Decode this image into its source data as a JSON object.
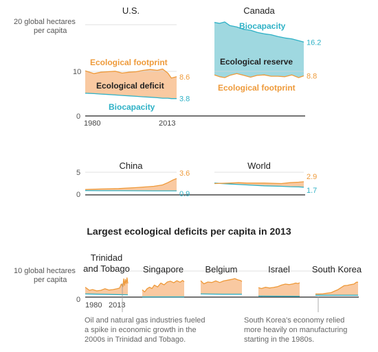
{
  "colors": {
    "footprint": "#ee9a3a",
    "biocapacity": "#2eb1c6",
    "deficit_fill": "#f9c9a1",
    "reserve_fill": "#9fd8e0",
    "text": "#222222",
    "axis_text": "#555555",
    "annotation_text": "#666666",
    "baseline": "#222222",
    "gridline": "#d6d6d6"
  },
  "top_panels": {
    "ytick_top": "20 global hectares",
    "ytick_top_line2": "per capita",
    "ytick_mid": "10",
    "ytick_zero": "0",
    "x_start": "1980",
    "x_end": "2013"
  },
  "middle_panels": {
    "ytick_five": "5",
    "ytick_zero": "0"
  },
  "section_title": "Largest ecological deficits per capita in 2013",
  "bottom_panels": {
    "ytick_top": "10 global hectares",
    "ytick_top_line2": "per capita",
    "ytick_zero": "0",
    "x_start": "1980",
    "x_end": "2013"
  },
  "annotations": {
    "trinidad_line1": "Oil and natural gas industries fueled",
    "trinidad_line2": "a spike in economic growth in the",
    "trinidad_line3": "2000s in Trinidad and Tobago.",
    "korea_line1": "South Korea's economy relied",
    "korea_line2": "more heavily on manufacturing",
    "korea_line3": "starting in the 1980s."
  },
  "chart_data": [
    {
      "type": "area",
      "title": "U.S.",
      "x_range": [
        1961,
        2013
      ],
      "ylim": [
        0,
        20
      ],
      "region_labels": [
        "Ecological footprint",
        "Ecological deficit",
        "Biocapacity"
      ],
      "series": [
        {
          "name": "Ecological footprint",
          "x": [
            1961,
            1966,
            1970,
            1974,
            1978,
            1982,
            1986,
            1990,
            1994,
            1998,
            2002,
            2005,
            2008,
            2010,
            2013
          ],
          "values": [
            9.9,
            9.3,
            9.6,
            9.7,
            9.8,
            9.4,
            9.6,
            9.7,
            10.0,
            10.2,
            10.0,
            10.3,
            9.4,
            8.3,
            8.6
          ]
        },
        {
          "name": "Biocapacity",
          "x": [
            1961,
            1966,
            1970,
            1974,
            1978,
            1982,
            1986,
            1990,
            1994,
            1998,
            2002,
            2005,
            2008,
            2010,
            2013
          ],
          "values": [
            5.0,
            4.9,
            4.8,
            4.7,
            4.6,
            4.5,
            4.4,
            4.3,
            4.2,
            4.1,
            4.0,
            3.9,
            3.9,
            3.8,
            3.8
          ]
        }
      ],
      "end_labels": [
        "8.6",
        "3.8"
      ]
    },
    {
      "type": "area",
      "title": "Canada",
      "x_range": [
        1961,
        2013
      ],
      "ylim": [
        0,
        20
      ],
      "region_labels": [
        "Biocapacity",
        "Ecological reserve",
        "Ecological footprint"
      ],
      "series": [
        {
          "name": "Biocapacity",
          "x": [
            1961,
            1964,
            1967,
            1970,
            1974,
            1978,
            1982,
            1986,
            1990,
            1994,
            1998,
            2002,
            2006,
            2010,
            2013
          ],
          "values": [
            20.5,
            20.3,
            20.6,
            19.8,
            19.5,
            19.0,
            18.8,
            18.3,
            18.0,
            17.8,
            17.4,
            17.1,
            16.9,
            16.5,
            16.2
          ]
        },
        {
          "name": "Ecological footprint",
          "x": [
            1961,
            1964,
            1967,
            1970,
            1974,
            1978,
            1982,
            1986,
            1990,
            1994,
            1998,
            2002,
            2006,
            2010,
            2013
          ],
          "values": [
            9.0,
            8.6,
            8.4,
            8.9,
            9.3,
            8.9,
            8.5,
            8.9,
            9.0,
            8.7,
            8.7,
            8.6,
            9.0,
            8.4,
            8.8
          ]
        }
      ],
      "end_labels": [
        "16.2",
        "8.8"
      ]
    },
    {
      "type": "area",
      "title": "China",
      "x_range": [
        1961,
        2013
      ],
      "ylim": [
        0,
        5
      ],
      "series": [
        {
          "name": "Ecological footprint",
          "x": [
            1961,
            1970,
            1980,
            1990,
            2000,
            2005,
            2008,
            2011,
            2013
          ],
          "values": [
            1.2,
            1.3,
            1.4,
            1.6,
            1.9,
            2.2,
            2.7,
            3.3,
            3.6
          ]
        },
        {
          "name": "Biocapacity",
          "x": [
            1961,
            1970,
            1980,
            1990,
            2000,
            2005,
            2008,
            2011,
            2013
          ],
          "values": [
            0.95,
            0.93,
            0.92,
            0.91,
            0.9,
            0.9,
            0.9,
            0.9,
            0.9
          ]
        }
      ],
      "end_labels": [
        "3.6",
        "0.9"
      ]
    },
    {
      "type": "area",
      "title": "World",
      "x_range": [
        1961,
        2013
      ],
      "ylim": [
        0,
        5
      ],
      "series": [
        {
          "name": "Ecological footprint",
          "x": [
            1961,
            1970,
            1975,
            1980,
            1990,
            2000,
            2005,
            2010,
            2013
          ],
          "values": [
            2.5,
            2.6,
            2.7,
            2.6,
            2.6,
            2.5,
            2.7,
            2.8,
            2.9
          ]
        },
        {
          "name": "Biocapacity",
          "x": [
            1961,
            1970,
            1980,
            1990,
            2000,
            2005,
            2010,
            2013
          ],
          "values": [
            2.6,
            2.4,
            2.2,
            2.0,
            1.9,
            1.8,
            1.75,
            1.7
          ]
        }
      ],
      "end_labels": [
        "2.9",
        "1.7"
      ]
    },
    {
      "type": "area",
      "title": "Trinidad and Tobago",
      "x_range": [
        1961,
        2013
      ],
      "ylim": [
        0,
        10
      ],
      "series": [
        {
          "name": "Ecological footprint",
          "x": [
            1961,
            1966,
            1970,
            1975,
            1980,
            1985,
            1990,
            1995,
            2000,
            2003,
            2005,
            2007,
            2008,
            2009,
            2010,
            2011,
            2012,
            2013
          ],
          "values": [
            3.8,
            2.6,
            2.9,
            2.4,
            2.6,
            3.2,
            2.7,
            2.9,
            3.2,
            3.5,
            5.0,
            4.0,
            7.0,
            4.5,
            6.8,
            5.2,
            7.4,
            5.2
          ]
        },
        {
          "name": "Biocapacity",
          "x": [
            1961,
            1980,
            1995,
            2013
          ],
          "values": [
            1.2,
            1.1,
            1.0,
            0.9
          ]
        }
      ]
    },
    {
      "type": "area",
      "title": "Singapore",
      "x_range": [
        1961,
        2013
      ],
      "ylim": [
        0,
        10
      ],
      "series": [
        {
          "name": "Ecological footprint",
          "x": [
            1961,
            1964,
            1967,
            1970,
            1973,
            1976,
            1980,
            1984,
            1988,
            1992,
            1996,
            2000,
            2004,
            2008,
            2011,
            2013
          ],
          "values": [
            2.8,
            2.0,
            3.2,
            3.8,
            3.3,
            4.6,
            3.9,
            5.4,
            4.7,
            5.8,
            6.1,
            5.5,
            6.3,
            5.7,
            6.4,
            5.9
          ]
        },
        {
          "name": "Biocapacity",
          "x": [
            1961,
            2013
          ],
          "values": [
            0.1,
            0.1
          ]
        }
      ]
    },
    {
      "type": "area",
      "title": "Belgium",
      "x_range": [
        1961,
        2013
      ],
      "ylim": [
        0,
        10
      ],
      "series": [
        {
          "name": "Ecological footprint",
          "x": [
            1961,
            1965,
            1970,
            1975,
            1980,
            1985,
            1990,
            1995,
            2000,
            2004,
            2008,
            2011,
            2013
          ],
          "values": [
            6.3,
            5.1,
            5.8,
            5.6,
            6.2,
            5.6,
            6.2,
            6.5,
            6.8,
            7.1,
            6.6,
            6.4,
            6.0
          ]
        },
        {
          "name": "Biocapacity",
          "x": [
            1961,
            1990,
            2013
          ],
          "values": [
            1.2,
            1.1,
            1.1
          ]
        }
      ]
    },
    {
      "type": "area",
      "title": "Israel",
      "x_range": [
        1961,
        2013
      ],
      "ylim": [
        0,
        10
      ],
      "series": [
        {
          "name": "Ecological footprint",
          "x": [
            1961,
            1965,
            1970,
            1975,
            1980,
            1985,
            1990,
            1995,
            2000,
            2005,
            2008,
            2011,
            2013
          ],
          "values": [
            3.6,
            3.3,
            3.8,
            3.5,
            3.7,
            4.0,
            4.6,
            5.0,
            4.8,
            5.1,
            5.4,
            5.2,
            5.5
          ]
        },
        {
          "name": "Biocapacity",
          "x": [
            1961,
            2013
          ],
          "values": [
            0.4,
            0.3
          ]
        }
      ]
    },
    {
      "type": "area",
      "title": "South Korea",
      "x_range": [
        1961,
        2013
      ],
      "ylim": [
        0,
        10
      ],
      "series": [
        {
          "name": "Ecological footprint",
          "x": [
            1961,
            1966,
            1970,
            1975,
            1980,
            1985,
            1988,
            1992,
            1996,
            2000,
            2004,
            2008,
            2011,
            2013
          ],
          "values": [
            1.2,
            1.2,
            1.3,
            1.5,
            1.7,
            2.4,
            2.8,
            3.6,
            4.4,
            4.5,
            4.8,
            5.0,
            5.7,
            5.7
          ]
        },
        {
          "name": "Biocapacity",
          "x": [
            1961,
            2013
          ],
          "values": [
            0.7,
            0.7
          ]
        }
      ]
    }
  ]
}
